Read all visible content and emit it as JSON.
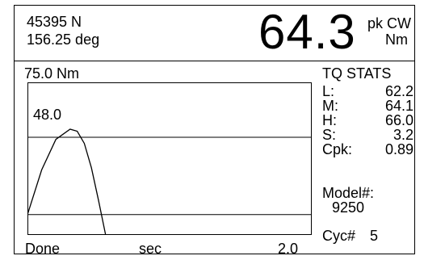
{
  "header": {
    "sensor_id": "45395 N",
    "angle": "156.25 deg",
    "reading": "64.3",
    "reading_unit_top": "pk CW",
    "reading_unit_bottom": "Nm"
  },
  "graph": {
    "scale_label": "75.0 Nm",
    "peak_label": "48.0",
    "status": "Done",
    "x_unit": "sec",
    "time_span": "2.0"
  },
  "chart_data": {
    "type": "line",
    "title": "",
    "xlabel": "sec",
    "ylabel": "Nm",
    "xlim": [
      0,
      2.0
    ],
    "ylim": [
      0,
      75.0
    ],
    "reference_lines": [
      48.0,
      10.0
    ],
    "series": [
      {
        "x": [
          0.0,
          0.1,
          0.2,
          0.3,
          0.35,
          0.4,
          0.45,
          0.5,
          0.55,
          0.6
        ],
        "y": [
          10,
          32,
          47,
          52,
          51,
          45,
          33,
          17,
          0,
          0
        ]
      }
    ]
  },
  "stats": {
    "title": "TQ STATS",
    "rows": [
      {
        "key": "L:",
        "value": "62.2"
      },
      {
        "key": "M:",
        "value": "64.1"
      },
      {
        "key": "H:",
        "value": "66.0"
      },
      {
        "key": "S:",
        "value": "3.2"
      },
      {
        "key": "Cpk:",
        "value": "0.89"
      }
    ],
    "model_label": "Model#:",
    "model_value": "9250",
    "cycle_label": "Cyc#",
    "cycle_value": "5"
  }
}
